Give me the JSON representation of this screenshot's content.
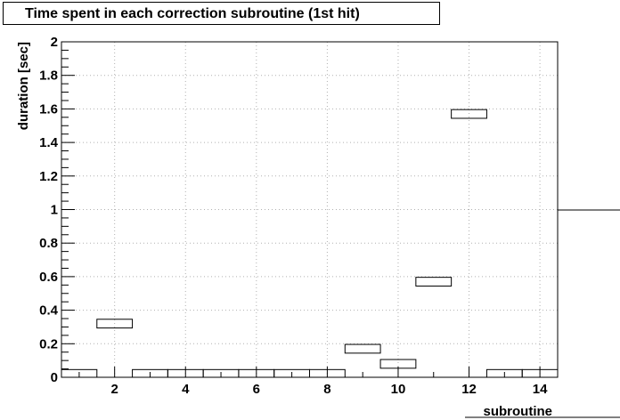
{
  "chart_data": {
    "type": "bar",
    "title": "Time spent in each correction subroutine (1st hit)",
    "xlabel": "subroutine",
    "ylabel": "duration [sec]",
    "xlim": [
      0.5,
      14.5
    ],
    "ylim": [
      0,
      2
    ],
    "grid": true,
    "x_ticks": [
      2,
      4,
      6,
      8,
      10,
      12,
      14
    ],
    "y_ticks": [
      0,
      0.2,
      0.4,
      0.6,
      0.8,
      1,
      1.2,
      1.4,
      1.6,
      1.8,
      2
    ],
    "y_tick_labels": [
      "0",
      "0.2",
      "0.4",
      "0.6",
      "0.8",
      "1",
      "1.2",
      "1.4",
      "1.6",
      "1.8",
      "2"
    ],
    "bins": [
      1,
      2,
      3,
      4,
      5,
      6,
      7,
      8,
      9,
      10,
      11,
      12,
      13,
      14
    ],
    "values": [
      0.02,
      0.32,
      0.02,
      0.02,
      0.02,
      0.02,
      0.02,
      0.02,
      0.17,
      0.08,
      0.57,
      1.57,
      0.02,
      0.02
    ],
    "box_half_height": 0.026,
    "stats_box": {
      "visible": true,
      "content": ""
    }
  }
}
